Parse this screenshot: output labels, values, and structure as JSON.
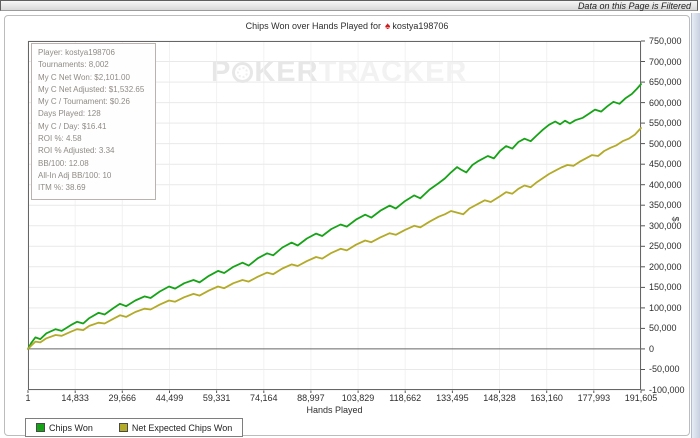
{
  "window": {
    "filter_notice": "Data on this Page is Filtered"
  },
  "title": {
    "prefix": "Chips Won over Hands Played for",
    "player": "kostya198706",
    "player_icon": "red-spade"
  },
  "watermark": {
    "p1": "P",
    "p2": "KER",
    "p3": "TRACKER"
  },
  "stats_box": {
    "lines": [
      "Player: kostya198706",
      "Tournaments: 8,002",
      "My C Net Won: $2,101.00",
      "My C Net Adjusted: $1,532.65",
      "My C / Tournament: $0.26",
      "Days Played: 128",
      "My C / Day: $16.41",
      "ROI %: 4.58",
      "ROI % Adjusted: 3.34",
      "BB/100: 12.08",
      "All-In Adj BB/100: 10",
      "ITM %: 38.69"
    ]
  },
  "chart_data": {
    "type": "line",
    "title": "Chips Won over Hands Played for kostya198706",
    "xlabel": "Hands Played",
    "ylabel": "$",
    "ylim": [
      -100000,
      750000
    ],
    "grid": true,
    "legend_position": "bottom-left",
    "x_ticks": [
      "1",
      "14,833",
      "29,666",
      "44,499",
      "59,331",
      "74,164",
      "88,997",
      "103,829",
      "118,662",
      "133,495",
      "148,328",
      "163,160",
      "177,993",
      "191,605"
    ],
    "y_ticks": [
      "750,000",
      "700,000",
      "650,000",
      "600,000",
      "550,000",
      "500,000",
      "450,000",
      "400,000",
      "350,000",
      "300,000",
      "250,000",
      "200,000",
      "150,000",
      "100,000",
      "50,000",
      "0",
      "-50,000",
      "-100,000"
    ],
    "series": [
      {
        "name": "Chips Won",
        "color": "#17a317",
        "points": [
          [
            0,
            0
          ],
          [
            0.005,
            14000
          ],
          [
            0.012,
            28000
          ],
          [
            0.02,
            24000
          ],
          [
            0.03,
            38000
          ],
          [
            0.045,
            48000
          ],
          [
            0.055,
            44000
          ],
          [
            0.07,
            58000
          ],
          [
            0.08,
            66000
          ],
          [
            0.09,
            62000
          ],
          [
            0.1,
            75000
          ],
          [
            0.115,
            88000
          ],
          [
            0.125,
            84000
          ],
          [
            0.14,
            100000
          ],
          [
            0.15,
            110000
          ],
          [
            0.16,
            104000
          ],
          [
            0.175,
            118000
          ],
          [
            0.19,
            128000
          ],
          [
            0.2,
            124000
          ],
          [
            0.215,
            140000
          ],
          [
            0.23,
            152000
          ],
          [
            0.24,
            147000
          ],
          [
            0.255,
            160000
          ],
          [
            0.27,
            168000
          ],
          [
            0.28,
            162000
          ],
          [
            0.295,
            178000
          ],
          [
            0.31,
            190000
          ],
          [
            0.32,
            185000
          ],
          [
            0.335,
            200000
          ],
          [
            0.35,
            210000
          ],
          [
            0.36,
            203000
          ],
          [
            0.375,
            221000
          ],
          [
            0.39,
            233000
          ],
          [
            0.4,
            228000
          ],
          [
            0.415,
            247000
          ],
          [
            0.43,
            259000
          ],
          [
            0.44,
            252000
          ],
          [
            0.455,
            269000
          ],
          [
            0.47,
            281000
          ],
          [
            0.48,
            275000
          ],
          [
            0.495,
            292000
          ],
          [
            0.51,
            303000
          ],
          [
            0.52,
            298000
          ],
          [
            0.535,
            315000
          ],
          [
            0.55,
            327000
          ],
          [
            0.56,
            320000
          ],
          [
            0.575,
            337000
          ],
          [
            0.59,
            349000
          ],
          [
            0.6,
            342000
          ],
          [
            0.615,
            360000
          ],
          [
            0.63,
            374000
          ],
          [
            0.64,
            367000
          ],
          [
            0.655,
            388000
          ],
          [
            0.67,
            404000
          ],
          [
            0.68,
            415000
          ],
          [
            0.69,
            430000
          ],
          [
            0.7,
            443000
          ],
          [
            0.706,
            437000
          ],
          [
            0.715,
            430000
          ],
          [
            0.725,
            448000
          ],
          [
            0.735,
            458000
          ],
          [
            0.75,
            470000
          ],
          [
            0.76,
            464000
          ],
          [
            0.77,
            482000
          ],
          [
            0.78,
            494000
          ],
          [
            0.79,
            488000
          ],
          [
            0.8,
            504000
          ],
          [
            0.81,
            512000
          ],
          [
            0.82,
            506000
          ],
          [
            0.83,
            520000
          ],
          [
            0.84,
            534000
          ],
          [
            0.85,
            546000
          ],
          [
            0.86,
            554000
          ],
          [
            0.868,
            547000
          ],
          [
            0.876,
            556000
          ],
          [
            0.884,
            549000
          ],
          [
            0.893,
            557000
          ],
          [
            0.905,
            563000
          ],
          [
            0.915,
            573000
          ],
          [
            0.925,
            583000
          ],
          [
            0.935,
            578000
          ],
          [
            0.945,
            591000
          ],
          [
            0.955,
            602000
          ],
          [
            0.965,
            597000
          ],
          [
            0.975,
            611000
          ],
          [
            0.985,
            621000
          ],
          [
            0.993,
            633000
          ],
          [
            1,
            645000
          ]
        ]
      },
      {
        "name": "Net Expected Chips Won",
        "color": "#b3aa28",
        "points": [
          [
            0,
            0
          ],
          [
            0.005,
            8000
          ],
          [
            0.012,
            18000
          ],
          [
            0.02,
            16000
          ],
          [
            0.03,
            26000
          ],
          [
            0.045,
            34000
          ],
          [
            0.055,
            32000
          ],
          [
            0.07,
            42000
          ],
          [
            0.08,
            48000
          ],
          [
            0.09,
            46000
          ],
          [
            0.1,
            56000
          ],
          [
            0.115,
            64000
          ],
          [
            0.125,
            62000
          ],
          [
            0.14,
            74000
          ],
          [
            0.15,
            82000
          ],
          [
            0.16,
            78000
          ],
          [
            0.175,
            90000
          ],
          [
            0.19,
            98000
          ],
          [
            0.2,
            96000
          ],
          [
            0.215,
            108000
          ],
          [
            0.23,
            118000
          ],
          [
            0.24,
            115000
          ],
          [
            0.255,
            126000
          ],
          [
            0.27,
            134000
          ],
          [
            0.28,
            130000
          ],
          [
            0.295,
            142000
          ],
          [
            0.31,
            152000
          ],
          [
            0.32,
            148000
          ],
          [
            0.335,
            160000
          ],
          [
            0.35,
            168000
          ],
          [
            0.36,
            164000
          ],
          [
            0.375,
            176000
          ],
          [
            0.39,
            186000
          ],
          [
            0.4,
            182000
          ],
          [
            0.415,
            196000
          ],
          [
            0.43,
            206000
          ],
          [
            0.44,
            202000
          ],
          [
            0.455,
            214000
          ],
          [
            0.47,
            224000
          ],
          [
            0.48,
            220000
          ],
          [
            0.495,
            234000
          ],
          [
            0.51,
            244000
          ],
          [
            0.52,
            240000
          ],
          [
            0.535,
            254000
          ],
          [
            0.55,
            264000
          ],
          [
            0.56,
            260000
          ],
          [
            0.575,
            272000
          ],
          [
            0.59,
            282000
          ],
          [
            0.6,
            278000
          ],
          [
            0.615,
            290000
          ],
          [
            0.63,
            300000
          ],
          [
            0.64,
            296000
          ],
          [
            0.655,
            310000
          ],
          [
            0.67,
            322000
          ],
          [
            0.68,
            328000
          ],
          [
            0.69,
            336000
          ],
          [
            0.7,
            332000
          ],
          [
            0.71,
            328000
          ],
          [
            0.72,
            342000
          ],
          [
            0.735,
            354000
          ],
          [
            0.745,
            362000
          ],
          [
            0.755,
            358000
          ],
          [
            0.77,
            372000
          ],
          [
            0.78,
            382000
          ],
          [
            0.79,
            378000
          ],
          [
            0.8,
            390000
          ],
          [
            0.81,
            398000
          ],
          [
            0.82,
            394000
          ],
          [
            0.83,
            406000
          ],
          [
            0.84,
            416000
          ],
          [
            0.85,
            426000
          ],
          [
            0.86,
            434000
          ],
          [
            0.87,
            442000
          ],
          [
            0.88,
            448000
          ],
          [
            0.89,
            446000
          ],
          [
            0.9,
            456000
          ],
          [
            0.91,
            464000
          ],
          [
            0.92,
            472000
          ],
          [
            0.93,
            470000
          ],
          [
            0.94,
            482000
          ],
          [
            0.95,
            490000
          ],
          [
            0.96,
            496000
          ],
          [
            0.97,
            506000
          ],
          [
            0.98,
            512000
          ],
          [
            0.99,
            522000
          ],
          [
            1,
            538000
          ]
        ]
      }
    ]
  },
  "legend": {
    "items": [
      {
        "label": "Chips Won",
        "color": "#17a317"
      },
      {
        "label": "Net Expected Chips Won",
        "color": "#b3aa28"
      }
    ]
  }
}
